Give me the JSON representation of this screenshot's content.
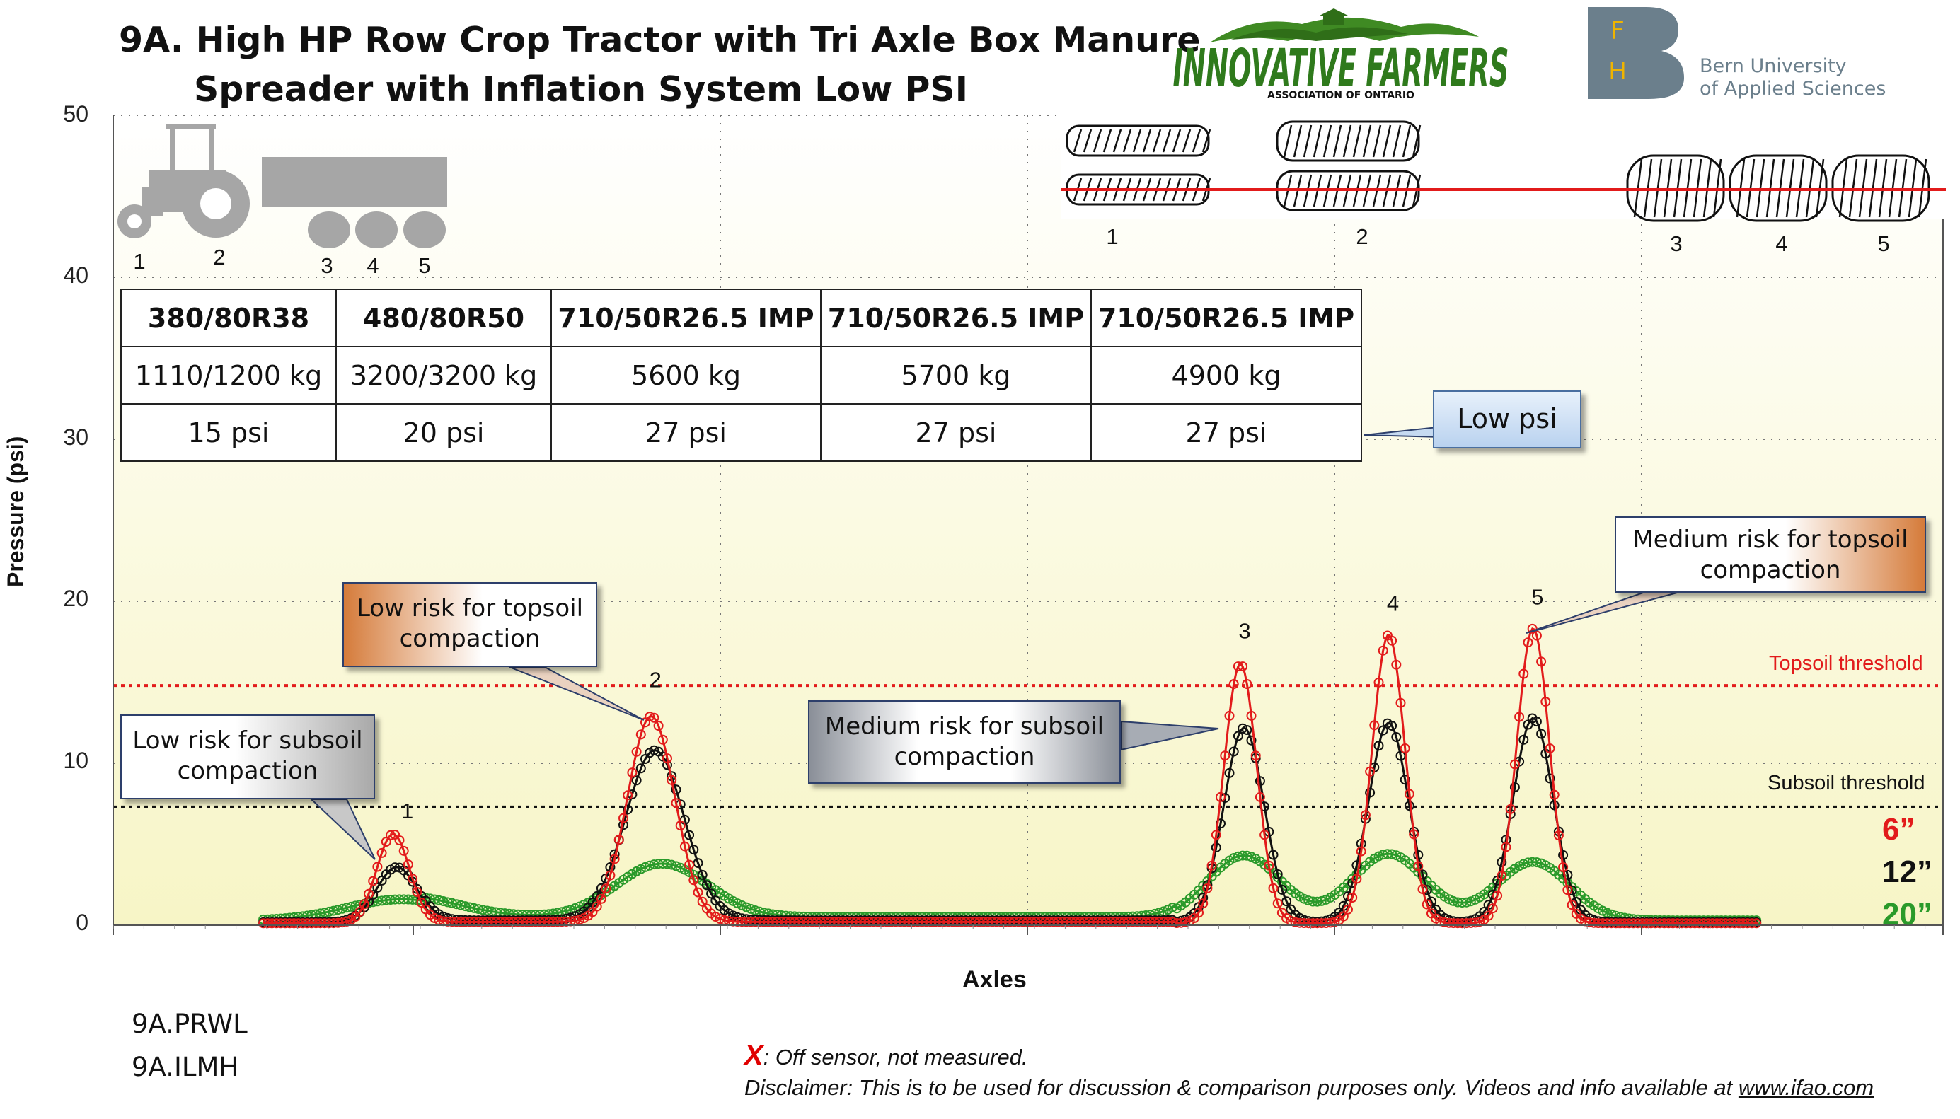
{
  "title_line1": "9A. High HP Row Crop Tractor with Tri Axle Box Manure",
  "title_line2": "Spreader with Inflation System Low PSI",
  "logos": {
    "ifao_name": "INNOVATIVE FARMERS",
    "ifao_sub": "ASSOCIATION OF ONTARIO",
    "bern_letters": [
      "F",
      "H"
    ],
    "bern_line1": "Bern University",
    "bern_line2": "of Applied Sciences"
  },
  "tractor_axle_labels": [
    "1",
    "2",
    "3",
    "4",
    "5"
  ],
  "footprint_axle_labels": [
    "1",
    "2",
    "3",
    "4",
    "5"
  ],
  "spec_table": {
    "tires": [
      "380/80R38",
      "480/80R50",
      "710/50R26.5 IMP",
      "710/50R26.5 IMP",
      "710/50R26.5 IMP"
    ],
    "loads": [
      "1110/1200 kg",
      "3200/3200 kg",
      "5600 kg",
      "5700 kg",
      "4900 kg"
    ],
    "pressures": [
      "15 psi",
      "20 psi",
      "27 psi",
      "27 psi",
      "27 psi"
    ]
  },
  "callouts": {
    "low_psi": "Low psi",
    "low_subsoil": [
      "Low risk for subsoil",
      "compaction"
    ],
    "low_topsoil": [
      "Low risk for topsoil",
      "compaction"
    ],
    "medium_subsoil": [
      "Medium risk for subsoil",
      "compaction"
    ],
    "medium_topsoil": [
      "Medium risk for topsoil",
      "compaction"
    ]
  },
  "codes": [
    "9A.PRWL",
    "9A.ILMH"
  ],
  "footer": {
    "x_mark": "X",
    "off_sensor": ": Off sensor, not measured.",
    "disclaimer": "Disclaimer: This is to be used for discussion & comparison purposes only. Videos and info available at ",
    "link": "www.ifao.com"
  },
  "colors": {
    "six_inch": "#e21b1b",
    "twelve_inch": "#111111",
    "twenty_inch": "#2a9a2a",
    "topsoil_threshold": "#e21b1b",
    "subsoil_threshold": "#111111",
    "plot_background_top": "#ffffff",
    "plot_background_bottom": "#f7f5c6"
  },
  "chart_data": {
    "type": "line",
    "title": "",
    "xlabel": "Axles",
    "ylabel": "Pressure (psi)",
    "ylim": [
      0,
      50
    ],
    "yticks": [
      0,
      10,
      20,
      30,
      40,
      50
    ],
    "grid": true,
    "peak_labels": [
      "1",
      "2",
      "3",
      "4",
      "5"
    ],
    "thresholds": [
      {
        "name": "Topsoil threshold",
        "value": 14.8
      },
      {
        "name": "Subsoil threshold",
        "value": 7.3
      }
    ],
    "legend": [
      "6”",
      "12”",
      "20”"
    ],
    "x_range": [
      0,
      1
    ],
    "series": [
      {
        "name": "6”",
        "baseline": 0.2,
        "peaks": [
          {
            "x": 0.153,
            "value": 5.5,
            "width": 0.009
          },
          {
            "x": 0.294,
            "value": 12.7,
            "width": 0.013
          },
          {
            "x": 0.616,
            "value": 16.0,
            "width": 0.009
          },
          {
            "x": 0.697,
            "value": 17.8,
            "width": 0.009
          },
          {
            "x": 0.776,
            "value": 18.2,
            "width": 0.009
          }
        ]
      },
      {
        "name": "12”",
        "baseline": 0.3,
        "peaks": [
          {
            "x": 0.155,
            "value": 3.4,
            "width": 0.011
          },
          {
            "x": 0.296,
            "value": 10.5,
            "width": 0.016
          },
          {
            "x": 0.618,
            "value": 12.0,
            "width": 0.011
          },
          {
            "x": 0.697,
            "value": 12.3,
            "width": 0.011
          },
          {
            "x": 0.776,
            "value": 12.6,
            "width": 0.011
          }
        ]
      },
      {
        "name": "20”",
        "baseline": 0.5,
        "peaks": [
          {
            "x": 0.158,
            "value": 1.3,
            "width": 0.03
          },
          {
            "x": 0.3,
            "value": 3.3,
            "width": 0.025
          },
          {
            "x": 0.618,
            "value": 4.0,
            "width": 0.02
          },
          {
            "x": 0.697,
            "value": 4.1,
            "width": 0.02
          },
          {
            "x": 0.776,
            "value": 3.6,
            "width": 0.02
          }
        ]
      }
    ]
  }
}
